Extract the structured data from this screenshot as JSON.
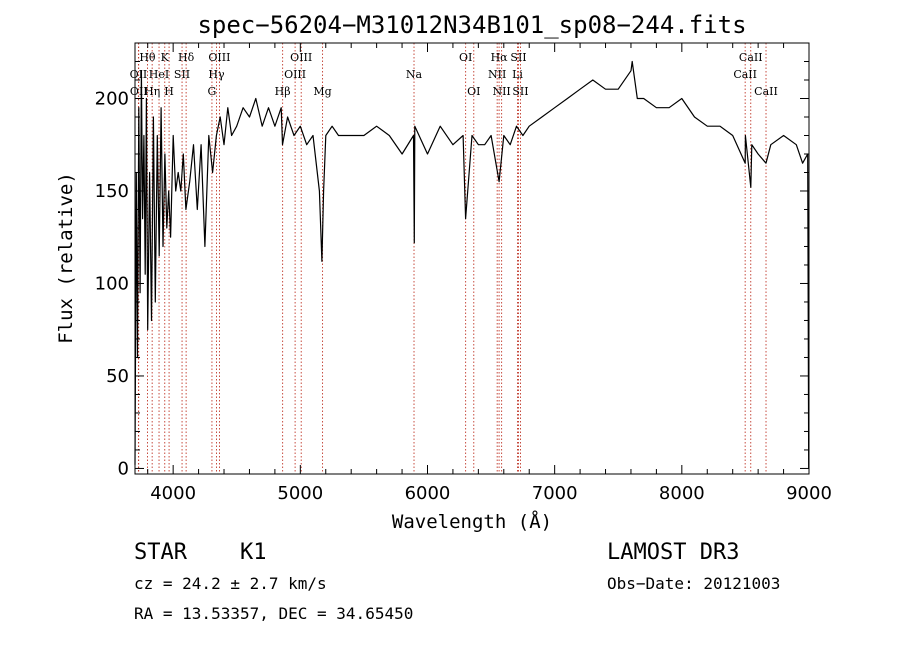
{
  "chart_data": {
    "type": "line",
    "title": "spec−56204−M31012N34B101_sp08−244.fits",
    "xlabel": "Wavelength (Å)",
    "ylabel": "Flux (relative)",
    "xlim": [
      3700,
      9000
    ],
    "ylim": [
      -3,
      230
    ],
    "xticks": [
      4000,
      5000,
      6000,
      7000,
      8000,
      9000
    ],
    "yticks": [
      0,
      50,
      100,
      150,
      200
    ],
    "series": [
      {
        "name": "flux",
        "x": [
          3700,
          3710,
          3720,
          3730,
          3740,
          3750,
          3760,
          3770,
          3780,
          3790,
          3800,
          3815,
          3830,
          3845,
          3860,
          3875,
          3890,
          3905,
          3920,
          3935,
          3950,
          3965,
          3980,
          4000,
          4020,
          4040,
          4060,
          4080,
          4100,
          4130,
          4160,
          4190,
          4220,
          4250,
          4280,
          4310,
          4340,
          4370,
          4400,
          4430,
          4460,
          4500,
          4550,
          4600,
          4650,
          4700,
          4750,
          4800,
          4850,
          4860,
          4900,
          4950,
          5000,
          5050,
          5100,
          5150,
          5170,
          5183,
          5200,
          5250,
          5300,
          5400,
          5500,
          5600,
          5700,
          5800,
          5890,
          5896,
          5900,
          6000,
          6100,
          6200,
          6280,
          6300,
          6350,
          6400,
          6450,
          6500,
          6563,
          6600,
          6650,
          6700,
          6750,
          6800,
          6900,
          7000,
          7100,
          7200,
          7300,
          7400,
          7500,
          7600,
          7610,
          7650,
          7700,
          7800,
          7900,
          8000,
          8100,
          8200,
          8300,
          8400,
          8498,
          8500,
          8542,
          8550,
          8600,
          8662,
          8700,
          8800,
          8900,
          8950,
          8990,
          8998,
          9000
        ],
        "y": [
          2,
          160,
          60,
          195,
          95,
          215,
          135,
          180,
          105,
          200,
          75,
          160,
          80,
          190,
          90,
          180,
          115,
          195,
          120,
          170,
          130,
          150,
          125,
          180,
          150,
          160,
          150,
          170,
          140,
          155,
          175,
          140,
          175,
          120,
          180,
          160,
          180,
          190,
          175,
          195,
          180,
          185,
          195,
          190,
          200,
          185,
          195,
          185,
          195,
          175,
          190,
          180,
          185,
          175,
          180,
          150,
          112,
          150,
          180,
          185,
          180,
          180,
          180,
          185,
          180,
          170,
          180,
          122,
          185,
          170,
          185,
          175,
          180,
          135,
          180,
          175,
          175,
          180,
          155,
          180,
          175,
          185,
          180,
          185,
          190,
          195,
          200,
          205,
          210,
          205,
          205,
          215,
          220,
          200,
          200,
          195,
          195,
          200,
          190,
          185,
          185,
          180,
          165,
          180,
          152,
          175,
          170,
          165,
          175,
          180,
          175,
          165,
          170,
          0,
          0
        ]
      }
    ],
    "lines": [
      {
        "label": "Hθ",
        "wl": 3798,
        "row": 1
      },
      {
        "label": "OII",
        "wl": 3727,
        "row": 2
      },
      {
        "label": "OII",
        "wl": 3729,
        "row": 3
      },
      {
        "label": "Hη",
        "wl": 3835,
        "row": 3
      },
      {
        "label": "HeI",
        "wl": 3889,
        "row": 2
      },
      {
        "label": "K",
        "wl": 3934,
        "row": 1
      },
      {
        "label": "H",
        "wl": 3968,
        "row": 3
      },
      {
        "label": "SII",
        "wl": 4070,
        "row": 2
      },
      {
        "label": "Hδ",
        "wl": 4102,
        "row": 1
      },
      {
        "label": "OIII",
        "wl": 4364,
        "row": 1
      },
      {
        "label": "Hγ",
        "wl": 4341,
        "row": 2
      },
      {
        "label": "G",
        "wl": 4305,
        "row": 3
      },
      {
        "label": "Hβ",
        "wl": 4861,
        "row": 3
      },
      {
        "label": "OIII",
        "wl": 5007,
        "row": 1
      },
      {
        "label": "OIII",
        "wl": 4959,
        "row": 2
      },
      {
        "label": "Mg",
        "wl": 5175,
        "row": 3
      },
      {
        "label": "Na",
        "wl": 5894,
        "row": 2
      },
      {
        "label": "OI",
        "wl": 6300,
        "row": 1
      },
      {
        "label": "OI",
        "wl": 6364,
        "row": 3
      },
      {
        "label": "Hα",
        "wl": 6563,
        "row": 1
      },
      {
        "label": "NII",
        "wl": 6548,
        "row": 2
      },
      {
        "label": "NII",
        "wl": 6583,
        "row": 3
      },
      {
        "label": "SII",
        "wl": 6716,
        "row": 1
      },
      {
        "label": "Li",
        "wl": 6708,
        "row": 2
      },
      {
        "label": "SII",
        "wl": 6731,
        "row": 3
      },
      {
        "label": "CaII",
        "wl": 8542,
        "row": 1
      },
      {
        "label": "CaII",
        "wl": 8498,
        "row": 2
      },
      {
        "label": "CaII",
        "wl": 8662,
        "row": 3
      }
    ]
  },
  "info": {
    "object_type": "STAR",
    "sub_class": "K1",
    "survey": "LAMOST DR3",
    "redshift_text": "cz = 24.2 ± 2.7 km/s",
    "obs_date_text": "Obs−Date: 20121003",
    "coords_text": "RA =  13.53357, DEC =  34.65450"
  }
}
